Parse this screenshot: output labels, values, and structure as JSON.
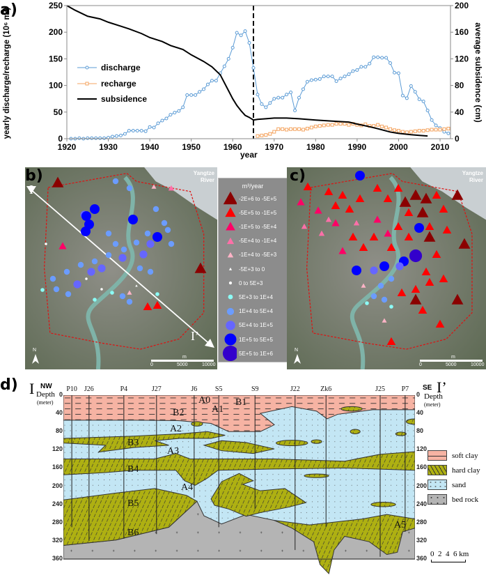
{
  "panels": {
    "a": "a)",
    "b": "b)",
    "c": "c)",
    "d": "d)"
  },
  "chart_data": {
    "type": "line",
    "xlabel": "year",
    "ylabel": "yearly discharge/recharge (10⁶ m³)",
    "y2label": "average subsidence (cm)",
    "xlim": [
      1920,
      2012
    ],
    "ylim": [
      0,
      250
    ],
    "y2lim": [
      0,
      200
    ],
    "xticks": [
      "1920",
      "1930",
      "1940",
      "1950",
      "1960",
      "1970",
      "1980",
      "1990",
      "2000",
      "2010"
    ],
    "yticks": [
      "0",
      "50",
      "100",
      "150",
      "200",
      "250"
    ],
    "y2ticks": [
      "0",
      "40",
      "80",
      "120",
      "160",
      "200"
    ],
    "vline_year": 1965,
    "legend": {
      "placement": "left-middle",
      "entries": [
        "discharge",
        "recharge",
        "subsidence"
      ]
    },
    "colors": {
      "discharge": "#5b9bd5",
      "recharge": "#f4a460",
      "subsidence": "#000000"
    },
    "series": [
      {
        "name": "discharge",
        "axis": "left",
        "marker": "circle",
        "x": [
          1921,
          1922,
          1923,
          1924,
          1925,
          1926,
          1927,
          1928,
          1929,
          1930,
          1931,
          1932,
          1933,
          1934,
          1935,
          1936,
          1937,
          1938,
          1939,
          1940,
          1941,
          1942,
          1943,
          1944,
          1945,
          1946,
          1947,
          1948,
          1949,
          1950,
          1951,
          1952,
          1953,
          1954,
          1955,
          1956,
          1957,
          1958,
          1959,
          1960,
          1961,
          1962,
          1963,
          1964,
          1965,
          1966,
          1967,
          1968,
          1969,
          1970,
          1971,
          1972,
          1973,
          1974,
          1975,
          1976,
          1977,
          1978,
          1979,
          1980,
          1981,
          1982,
          1983,
          1984,
          1985,
          1986,
          1987,
          1988,
          1989,
          1990,
          1991,
          1992,
          1993,
          1994,
          1995,
          1996,
          1997,
          1998,
          1999,
          2000,
          2001,
          2002,
          2003,
          2004,
          2005,
          2006,
          2007,
          2008,
          2009,
          2010,
          2011,
          2012
        ],
        "values": [
          0,
          0,
          1,
          0,
          1,
          1,
          1,
          1,
          1,
          2,
          4,
          5,
          6,
          9,
          15,
          15,
          15,
          15,
          14,
          22,
          21,
          29,
          34,
          38,
          45,
          49,
          52,
          59,
          82,
          82,
          82,
          88,
          93,
          102,
          109,
          109,
          123,
          136,
          150,
          171,
          199,
          194,
          202,
          180,
          133,
          83,
          65,
          59,
          67,
          75,
          77,
          77,
          83,
          87,
          53,
          77,
          93,
          107,
          110,
          111,
          112,
          117,
          117,
          117,
          108,
          113,
          117,
          121,
          127,
          129,
          135,
          135,
          141,
          153,
          153,
          152,
          152,
          142,
          124,
          123,
          81,
          76,
          99,
          88,
          74,
          70,
          53,
          35,
          25,
          20,
          13,
          10
        ]
      },
      {
        "name": "recharge",
        "axis": "left",
        "marker": "square",
        "x": [
          1966,
          1967,
          1968,
          1969,
          1970,
          1971,
          1972,
          1973,
          1974,
          1975,
          1976,
          1977,
          1978,
          1979,
          1980,
          1981,
          1982,
          1983,
          1984,
          1985,
          1986,
          1987,
          1988,
          1989,
          1990,
          1991,
          1992,
          1993,
          1994,
          1995,
          1996,
          1997,
          1998,
          1999,
          2000,
          2001,
          2002,
          2003,
          2004,
          2005,
          2006,
          2007,
          2008,
          2009,
          2010,
          2011,
          2012
        ],
        "values": [
          5,
          6,
          7,
          9,
          13,
          18,
          18,
          17,
          18,
          18,
          18,
          17,
          19,
          21,
          23,
          24,
          25,
          26,
          26,
          28,
          28,
          28,
          26,
          28,
          26,
          25,
          27,
          24,
          24,
          26,
          23,
          21,
          18,
          16,
          15,
          13,
          12,
          13,
          14,
          15,
          15,
          16,
          17,
          17,
          17,
          18,
          19
        ]
      },
      {
        "name": "subsidence",
        "axis": "right",
        "marker": "none",
        "x": [
          1920,
          1922,
          1925,
          1928,
          1930,
          1933,
          1935,
          1938,
          1940,
          1943,
          1945,
          1948,
          1950,
          1953,
          1955,
          1957,
          1958,
          1959,
          1960,
          1961,
          1962,
          1963,
          1964,
          1965,
          1966,
          1968,
          1970,
          1973,
          1976,
          1980,
          1985,
          1988,
          1990,
          1993,
          1995,
          1998,
          2000,
          2003,
          2005,
          2007
        ],
        "values": [
          200,
          193,
          184,
          180,
          175,
          169,
          165,
          158,
          152,
          146,
          140,
          134,
          126,
          116,
          108,
          96,
          84,
          72,
          60,
          50,
          42,
          35,
          32,
          28,
          29,
          30,
          31,
          31,
          30,
          28,
          26,
          25,
          22,
          18,
          15,
          10,
          8,
          6,
          5,
          4
        ]
      }
    ]
  },
  "maps": {
    "river_label": "Yangtze\nRiver",
    "section_start": "I",
    "section_end": "I’",
    "north": "N",
    "scale_labels": [
      "0",
      "5000",
      "10000"
    ],
    "scale_unit": "m"
  },
  "map_legend": {
    "title": "m³/year",
    "items": [
      {
        "label": "-2E+6 to -5E+5",
        "shape": "triangle",
        "color": "#8b0000"
      },
      {
        "label": "-5E+5 to -1E+5",
        "shape": "triangle",
        "color": "#ff0000"
      },
      {
        "label": "-1E+5 to -5E+4",
        "shape": "triangle",
        "color": "#ff0066"
      },
      {
        "label": "-5E+4 to -1E+4",
        "shape": "triangle",
        "color": "#ff6fa8"
      },
      {
        "label": "-1E+4 to -5E+3",
        "shape": "triangle",
        "color": "#ffb3c6"
      },
      {
        "label": "-5E+3 to 0",
        "shape": "triangle",
        "color": "#ffffff"
      },
      {
        "label": "0 to 5E+3",
        "shape": "circle",
        "color": "#ffffff"
      },
      {
        "label": "5E+3 to 1E+4",
        "shape": "circle",
        "color": "#8cfcf6"
      },
      {
        "label": "1E+4 to 5E+4",
        "shape": "circle",
        "color": "#6b9cff"
      },
      {
        "label": "5E+4 to 1E+5",
        "shape": "circle",
        "color": "#6666ff"
      },
      {
        "label": "1E+5 to 5E+5",
        "shape": "circle",
        "color": "#0000ff"
      },
      {
        "label": "5E+5 to 1E+6",
        "shape": "circle",
        "color": "#3300cc"
      }
    ]
  },
  "section": {
    "left_mark": "I",
    "right_mark": "I’",
    "left_dir": "NW",
    "right_dir": "SE",
    "depth_label": "Depth",
    "depth_unit": "(meter)",
    "depth_ticks": [
      "0",
      "40",
      "80",
      "120",
      "160",
      "200",
      "240",
      "280",
      "320",
      "360"
    ],
    "wells": [
      "P10",
      "J26",
      "P4",
      "J27",
      "J6",
      "S5",
      "S9",
      "J22",
      "Zk6",
      "J25",
      "P7"
    ],
    "layers": [
      "A0",
      "B1",
      "A1",
      "B2",
      "A2",
      "B3",
      "A3",
      "B4",
      "A4",
      "B5",
      "B6",
      "A5"
    ],
    "legend": [
      {
        "label": "soft clay",
        "color": "#f6b3a3"
      },
      {
        "label": "hard clay",
        "color": "#aeb012"
      },
      {
        "label": "sand",
        "color": "#c3e6f4"
      },
      {
        "label": "bed rock",
        "color": "#b4b4b4"
      }
    ],
    "scale_label": "0  2  4  6 km"
  }
}
